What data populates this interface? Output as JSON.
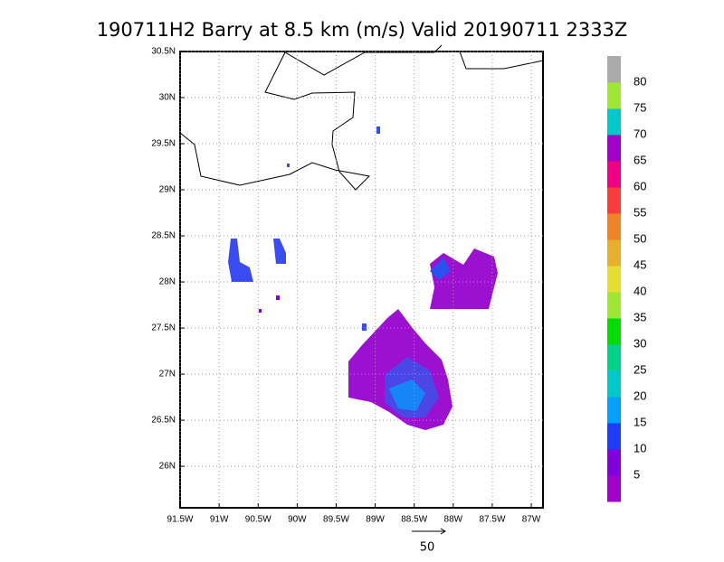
{
  "chart_data": {
    "type": "map",
    "title": "190711H2 Barry at 8.5 km (m/s) Valid 20190711 2333Z",
    "xlim": [
      -91.5,
      -86.85
    ],
    "ylim": [
      25.55,
      30.5
    ],
    "xticks": [
      {
        "value": -91.5,
        "label": "91.5W"
      },
      {
        "value": -91,
        "label": "91W"
      },
      {
        "value": -90.5,
        "label": "90.5W"
      },
      {
        "value": -90,
        "label": "90W"
      },
      {
        "value": -89.5,
        "label": "89.5W"
      },
      {
        "value": -89,
        "label": "89W"
      },
      {
        "value": -88.5,
        "label": "88.5W"
      },
      {
        "value": -88,
        "label": "88W"
      },
      {
        "value": -87.5,
        "label": "87.5W"
      },
      {
        "value": -87,
        "label": "87W"
      }
    ],
    "yticks": [
      {
        "value": 26,
        "label": "26N"
      },
      {
        "value": 26.5,
        "label": "26.5N"
      },
      {
        "value": 27,
        "label": "27N"
      },
      {
        "value": 27.5,
        "label": "27.5N"
      },
      {
        "value": 28,
        "label": "28N"
      },
      {
        "value": 28.5,
        "label": "28.5N"
      },
      {
        "value": 29,
        "label": "29N"
      },
      {
        "value": 29.5,
        "label": "29.5N"
      },
      {
        "value": 30,
        "label": "30N"
      },
      {
        "value": 30.5,
        "label": "30.5N"
      }
    ],
    "grid": true,
    "colorbar": {
      "levels": [
        5,
        10,
        15,
        20,
        25,
        30,
        35,
        40,
        45,
        50,
        55,
        60,
        65,
        70,
        75,
        80
      ],
      "colors": [
        "#a000c8",
        "#8200dc",
        "#1e3cff",
        "#00a0ff",
        "#00c8c8",
        "#00d28c",
        "#00dc00",
        "#a0e632",
        "#e6dc32",
        "#e6af2d",
        "#f08228",
        "#fa3c3c",
        "#f00082",
        "#a000c8",
        "#00c8c8",
        "#a0e632",
        "#aaaaaa"
      ]
    },
    "reference_vector": 50
  }
}
